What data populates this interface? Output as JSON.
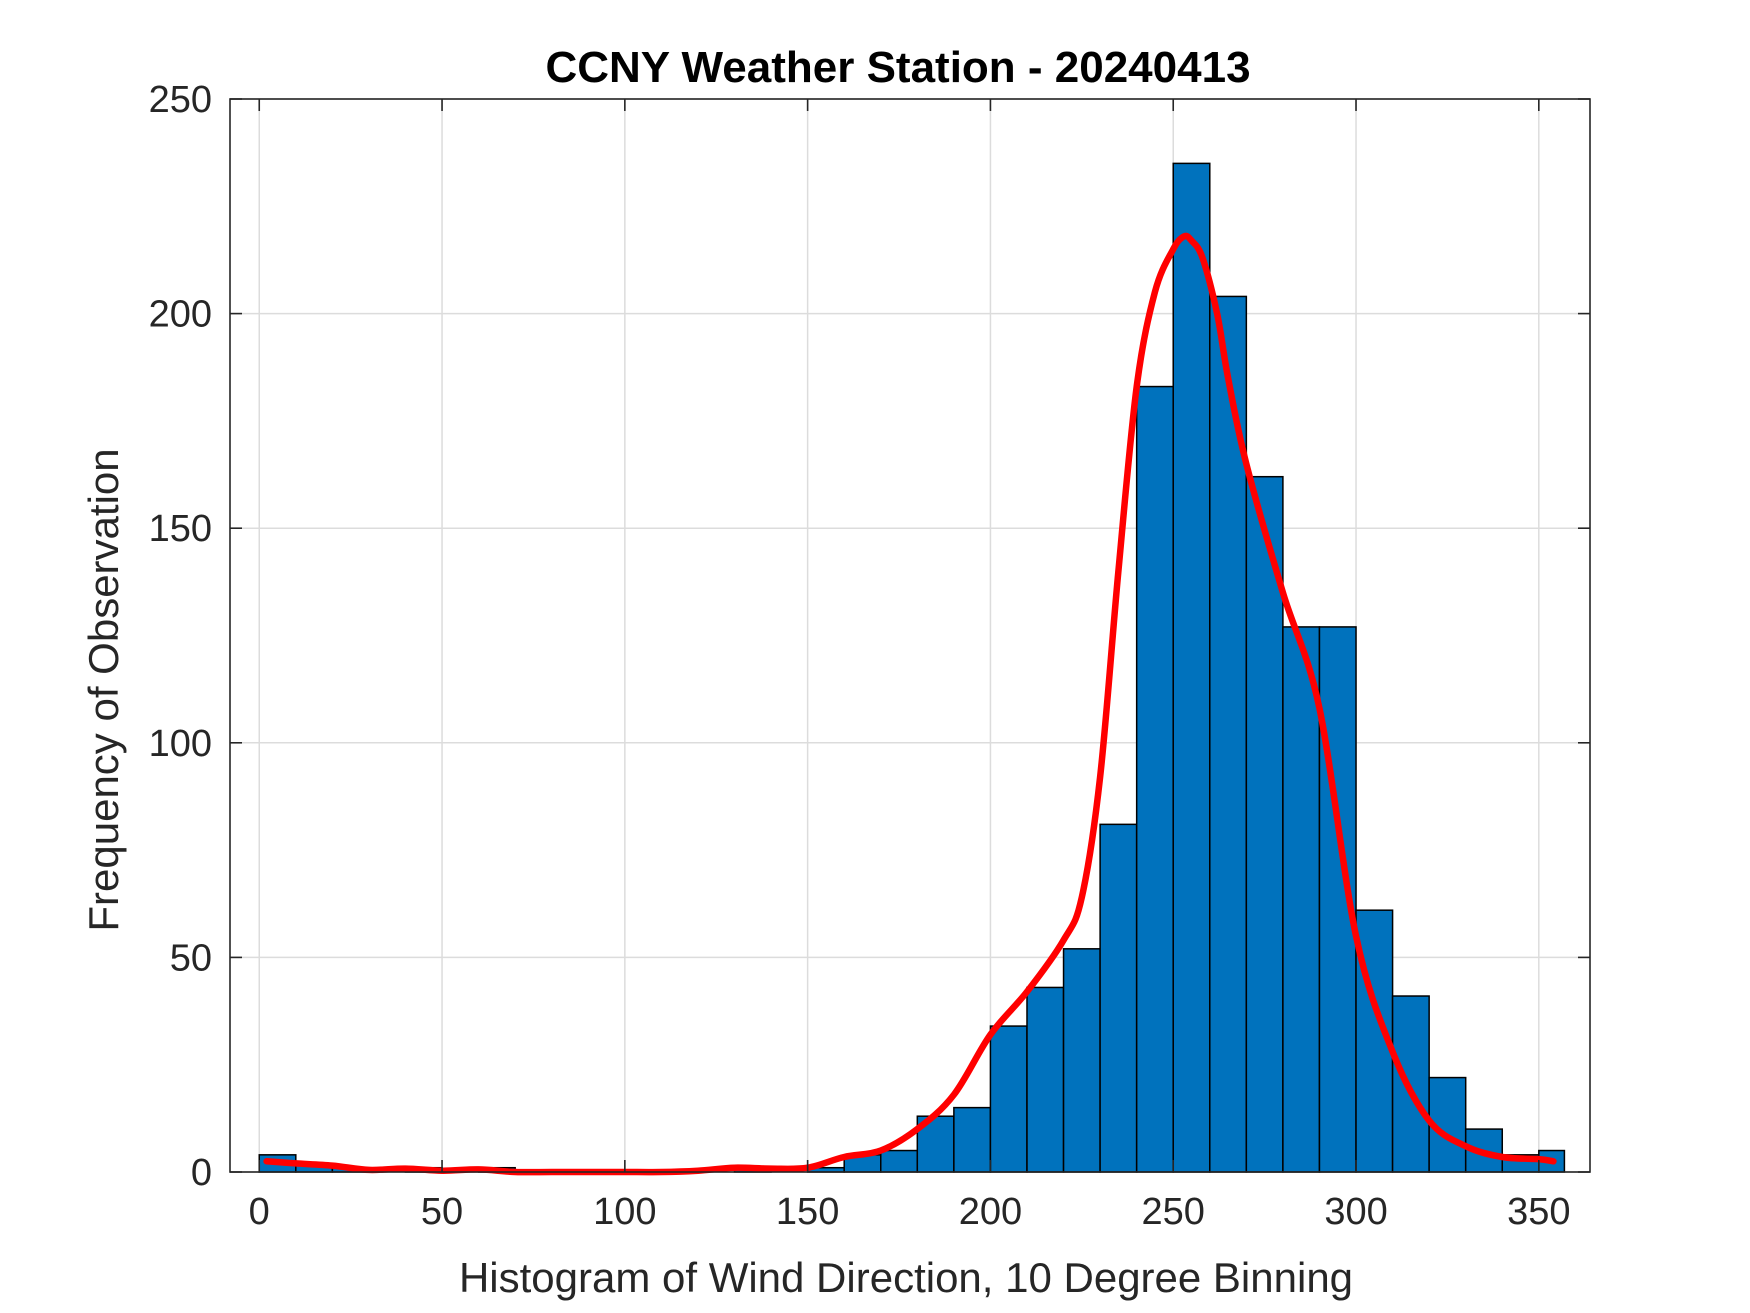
{
  "chart_data": {
    "type": "bar",
    "title": "CCNY Weather Station - 20240413",
    "xlabel": "Histogram of Wind Direction, 10 Degree Binning",
    "ylabel": "Frequency of Observation",
    "xlim": [
      -8,
      364
    ],
    "ylim": [
      0,
      250
    ],
    "xticks": [
      0,
      50,
      100,
      150,
      200,
      250,
      300,
      350
    ],
    "yticks": [
      0,
      50,
      100,
      150,
      200,
      250
    ],
    "grid": true,
    "bin_width": 10,
    "bins": [
      {
        "start": 0,
        "end": 10,
        "count": 4
      },
      {
        "start": 10,
        "end": 20,
        "count": 2
      },
      {
        "start": 20,
        "end": 30,
        "count": 1
      },
      {
        "start": 30,
        "end": 40,
        "count": 0
      },
      {
        "start": 40,
        "end": 50,
        "count": 1
      },
      {
        "start": 50,
        "end": 60,
        "count": 0
      },
      {
        "start": 60,
        "end": 70,
        "count": 1
      },
      {
        "start": 70,
        "end": 80,
        "count": 0
      },
      {
        "start": 80,
        "end": 90,
        "count": 0
      },
      {
        "start": 90,
        "end": 100,
        "count": 0
      },
      {
        "start": 100,
        "end": 110,
        "count": 0
      },
      {
        "start": 110,
        "end": 120,
        "count": 0
      },
      {
        "start": 120,
        "end": 130,
        "count": 0
      },
      {
        "start": 130,
        "end": 140,
        "count": 1
      },
      {
        "start": 140,
        "end": 150,
        "count": 0
      },
      {
        "start": 150,
        "end": 160,
        "count": 1
      },
      {
        "start": 160,
        "end": 170,
        "count": 4
      },
      {
        "start": 170,
        "end": 180,
        "count": 5
      },
      {
        "start": 180,
        "end": 190,
        "count": 13
      },
      {
        "start": 190,
        "end": 200,
        "count": 15
      },
      {
        "start": 200,
        "end": 210,
        "count": 34
      },
      {
        "start": 210,
        "end": 220,
        "count": 43
      },
      {
        "start": 220,
        "end": 230,
        "count": 52
      },
      {
        "start": 230,
        "end": 240,
        "count": 81
      },
      {
        "start": 240,
        "end": 250,
        "count": 183
      },
      {
        "start": 250,
        "end": 260,
        "count": 235
      },
      {
        "start": 260,
        "end": 270,
        "count": 204
      },
      {
        "start": 270,
        "end": 280,
        "count": 162
      },
      {
        "start": 280,
        "end": 290,
        "count": 127
      },
      {
        "start": 290,
        "end": 300,
        "count": 127
      },
      {
        "start": 300,
        "end": 310,
        "count": 61
      },
      {
        "start": 310,
        "end": 320,
        "count": 41
      },
      {
        "start": 320,
        "end": 330,
        "count": 22
      },
      {
        "start": 330,
        "end": 340,
        "count": 10
      },
      {
        "start": 340,
        "end": 350,
        "count": 4
      },
      {
        "start": 350,
        "end": 357,
        "count": 5
      }
    ],
    "smooth_curve": {
      "x": [
        2,
        10,
        20,
        30,
        40,
        50,
        60,
        70,
        80,
        90,
        100,
        110,
        120,
        130,
        140,
        150,
        160,
        170,
        180,
        190,
        200,
        210,
        220,
        225,
        230,
        235,
        240,
        245,
        250,
        253,
        255,
        258,
        262,
        265,
        270,
        280,
        290,
        300,
        310,
        320,
        330,
        340,
        350,
        354
      ],
      "y": [
        2.5,
        2,
        1.5,
        0.5,
        0.8,
        0.3,
        0.6,
        0,
        0,
        0,
        0,
        0,
        0.3,
        1,
        0.8,
        1,
        3.5,
        5,
        10,
        18,
        32,
        42,
        54,
        64,
        92,
        140,
        183,
        205,
        215,
        218,
        217,
        213,
        200,
        185,
        165,
        135,
        108,
        55,
        28,
        12,
        6,
        3.5,
        3,
        2.5
      ]
    },
    "colors": {
      "bar_fill": "#0072bd",
      "bar_edge": "#000000",
      "curve": "#ff0000",
      "grid": "#dcdcdc",
      "axes": "#262626"
    }
  }
}
